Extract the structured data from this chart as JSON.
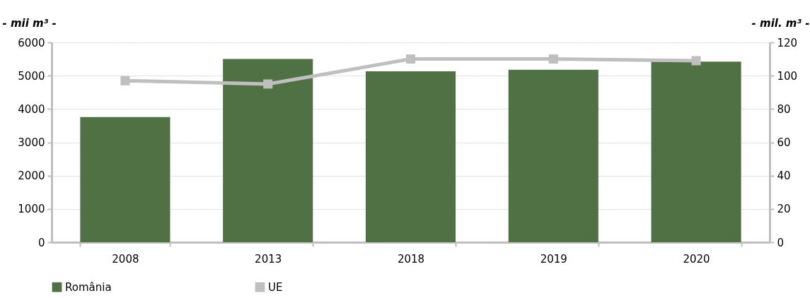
{
  "chart_data": {
    "type": "bar",
    "ylabel": "- mii m³ -",
    "y2label": "- mil. m³ -",
    "categories": [
      "2008",
      "2013",
      "2018",
      "2019",
      "2020"
    ],
    "series": [
      {
        "name": "România",
        "color": "#4f7143",
        "values": [
          3760,
          5500,
          5130,
          5180,
          5420
        ]
      },
      {
        "name": "UE",
        "type": "line",
        "axis": "y2",
        "marker": "square",
        "color": "#bfbfbf",
        "values": [
          97,
          95,
          110,
          110,
          109
        ]
      }
    ],
    "ylim": [
      0,
      6000
    ],
    "yticks": [
      0,
      1000,
      2000,
      3000,
      4000,
      5000,
      6000
    ],
    "y2lim": [
      0,
      120
    ],
    "y2ticks": [
      0,
      20,
      40,
      60,
      80,
      100,
      120
    ],
    "grid": "y",
    "legend": "bottom"
  }
}
